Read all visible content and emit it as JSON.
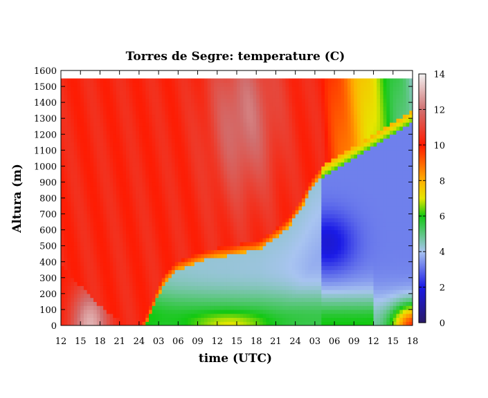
{
  "chart_data": {
    "type": "heatmap",
    "title": "Torres de Segre: temperature (C)",
    "xlabel": "time (UTC)",
    "ylabel": "Altura (m)",
    "x_tick_labels": [
      "12",
      "15",
      "18",
      "21",
      "24",
      "03",
      "06",
      "09",
      "12",
      "15",
      "18",
      "21",
      "24",
      "03",
      "06",
      "09",
      "12",
      "15",
      "18"
    ],
    "x_range_hours": [
      0,
      54
    ],
    "ylim": [
      0,
      1600
    ],
    "y_ticks": [
      0,
      100,
      200,
      300,
      400,
      500,
      600,
      700,
      800,
      900,
      1000,
      1100,
      1200,
      1300,
      1400,
      1500,
      1600
    ],
    "data_top_height": 1550,
    "colorbar": {
      "ticks": [
        0,
        2,
        4,
        6,
        8,
        10,
        12,
        14
      ],
      "range": [
        0,
        14
      ],
      "stops": [
        {
          "v": 0,
          "color": "#2a1a66"
        },
        {
          "v": 2,
          "color": "#1a1ae6"
        },
        {
          "v": 4,
          "color": "#a8c4f0"
        },
        {
          "v": 6,
          "color": "#12c812"
        },
        {
          "v": 7,
          "color": "#e6e600"
        },
        {
          "v": 8,
          "color": "#ffb000"
        },
        {
          "v": 10,
          "color": "#ff1a00"
        },
        {
          "v": 12,
          "color": "#d07070"
        },
        {
          "v": 14,
          "color": "#f2f2f2"
        }
      ]
    },
    "inversion_top": {
      "hours": [
        0,
        6,
        9,
        10,
        11,
        12,
        13,
        14,
        15,
        16,
        18,
        19,
        20,
        22,
        24,
        26,
        28,
        30,
        31,
        32,
        33,
        34,
        35,
        36,
        37,
        38,
        39,
        40,
        42,
        44,
        46,
        48,
        50,
        52,
        54
      ],
      "heights_m": [
        380,
        120,
        40,
        0,
        0,
        0,
        50,
        150,
        250,
        330,
        410,
        420,
        440,
        470,
        490,
        500,
        520,
        530,
        550,
        580,
        610,
        640,
        680,
        740,
        800,
        880,
        950,
        1000,
        1050,
        1100,
        1150,
        1200,
        1250,
        1300,
        1350
      ]
    }
  }
}
